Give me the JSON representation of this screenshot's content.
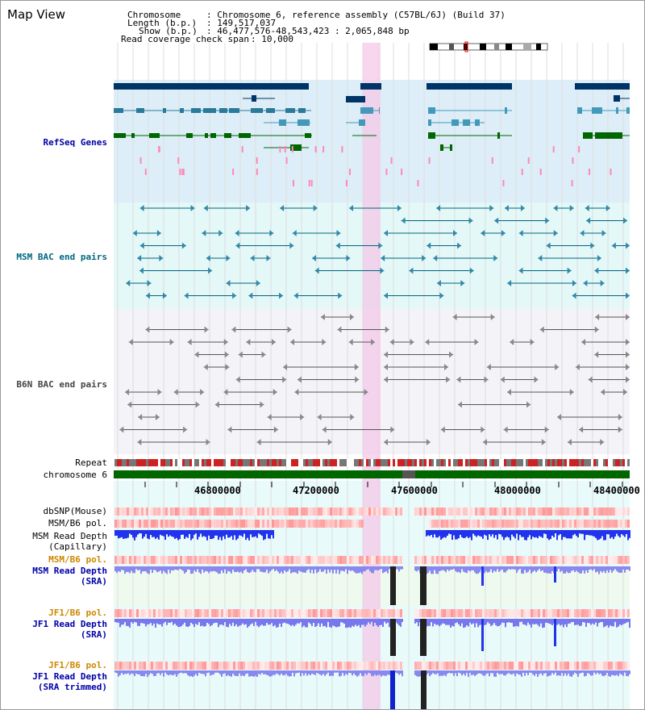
{
  "title": "Map View",
  "header": {
    "chromosome_key": "Chromosome",
    "chromosome_val": ": Chromosome 6, reference assembly (C57BL/6J) (Build 37)",
    "length_key": "Length (b.p.)",
    "length_val": ": 149,517,037",
    "show_key": "Show (b.p.)",
    "show_val": ": 46,477,576-48,543,423 : 2,065,848 bp",
    "read_cov_key": "Read coverage check span",
    "read_cov_val": ": 10,000"
  },
  "tracks": {
    "refseq": "RefSeq Genes",
    "msm_bac": "MSM BAC end pairs",
    "b6n_bac": "B6N BAC end pairs",
    "repeat": "Repeat",
    "chromosome": "chromosome 6",
    "dbsnp": "dbSNP(Mouse)",
    "msm_b6_pol_1": "MSM/B6 pol.",
    "msm_read_depth_cap_1": "MSM Read Depth",
    "msm_read_depth_cap_2": "(Capillary)",
    "msm_b6_pol_2": "MSM/B6 pol.",
    "msm_read_depth_sra_1": "MSM Read Depth",
    "msm_read_depth_sra_2": "(SRA)",
    "jf1_b6_pol_1": "JF1/B6 pol.",
    "jf1_read_depth_sra_1": "JF1 Read Depth",
    "jf1_read_depth_sra_2": "(SRA)",
    "jf1_b6_pol_2": "JF1/B6 pol.",
    "jf1_read_depth_trim_1": "JF1 Read Depth",
    "jf1_read_depth_trim_2": "(SRA trimmed)"
  },
  "axis": {
    "ticks": [
      "46800000",
      "47200000",
      "47600000",
      "48000000",
      "48400000"
    ]
  },
  "colors": {
    "refseq_bg": "#ddeef8",
    "msm_bg": "#e4f8f8",
    "b6n_bg": "#f4f4f8",
    "highlight": "#f4c8e8",
    "refseq_label": "#0000aa",
    "msm_label": "#006680",
    "b6n_label": "#444444",
    "pol_label": "#cc8800",
    "sra_label": "#0000aa"
  }
}
